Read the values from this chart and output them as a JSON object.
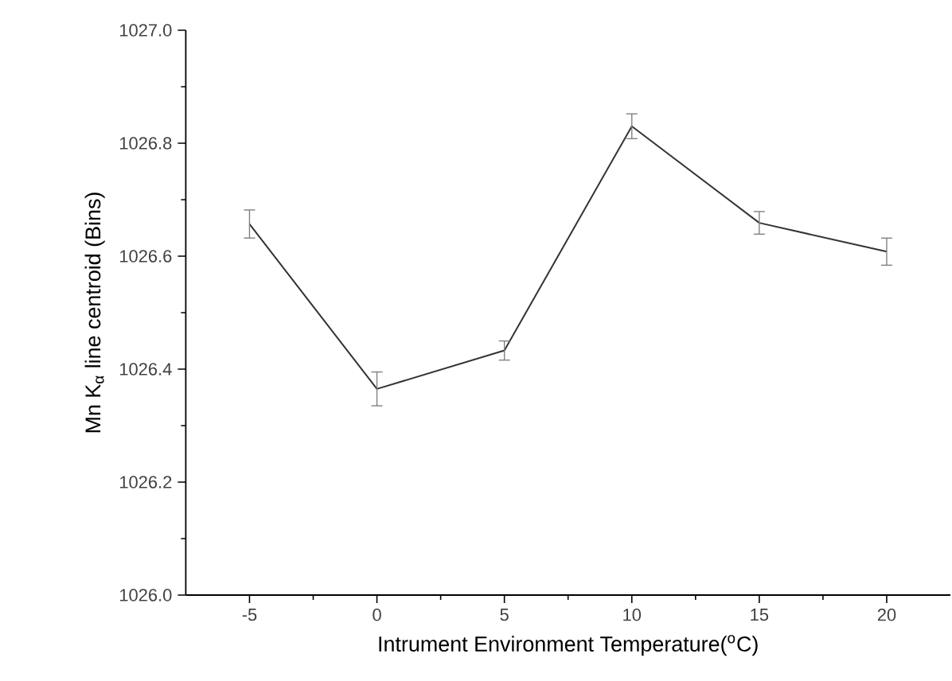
{
  "chart_data": {
    "type": "line",
    "xlabel": "Intrument Environment Temperature($^{o}$C)",
    "ylabel": "Mn K$_{α}$ line centroid (Bins)",
    "x": [
      -5,
      0,
      5,
      10,
      15,
      20
    ],
    "series": [
      {
        "color": "#333333",
        "values": [
          1026.657,
          1026.365,
          1026.433,
          1026.83,
          1026.659,
          1026.608
        ],
        "errors": [
          0.025,
          0.03,
          0.017,
          0.022,
          0.02,
          0.024
        ]
      }
    ],
    "xlim": [
      -7.5,
      22.5
    ],
    "xticks": [
      -5,
      0,
      5,
      10,
      15,
      20
    ],
    "ylim": [
      1026.0,
      1027.0
    ],
    "yticks": [
      {
        "value": 1026.0,
        "label": "1026.0"
      },
      {
        "value": 1026.2,
        "label": "1026.2"
      },
      {
        "value": 1026.4,
        "label": "1026.4"
      },
      {
        "value": 1026.6,
        "label": "1026.6"
      },
      {
        "value": 1026.8,
        "label": "1026.8"
      },
      {
        "value": 1027.0,
        "label": "1027.0"
      }
    ],
    "grid": false,
    "marker": "none",
    "line_style": "solid"
  }
}
